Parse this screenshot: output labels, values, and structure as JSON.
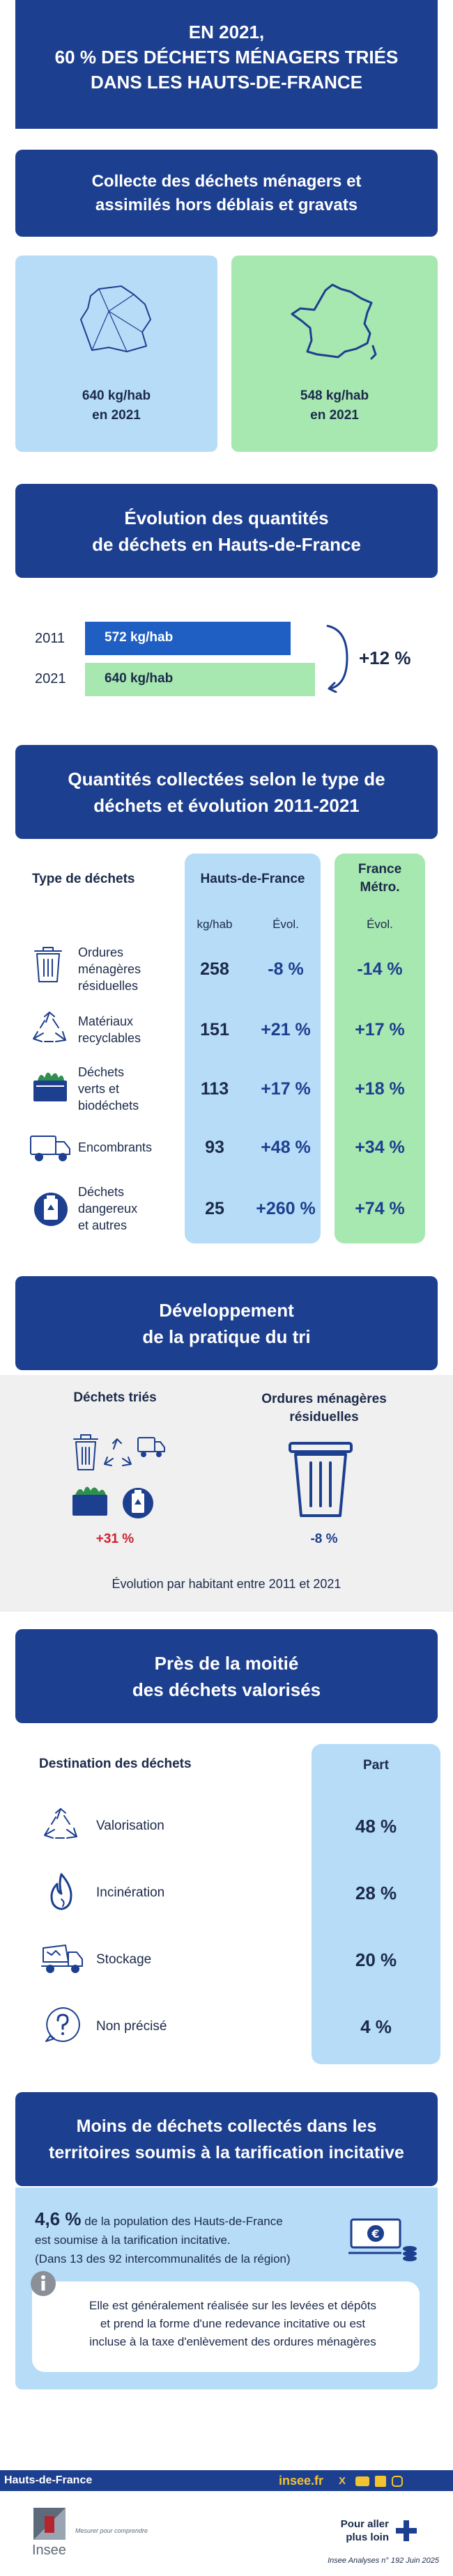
{
  "header": {
    "line1": "EN 2021,",
    "line2": "60 % DES DÉCHETS MÉNAGERS TRIÉS",
    "line3": "DANS LES HAUTS-DE-FRANCE"
  },
  "collecte": {
    "title_line1": "Collecte des déchets ménagers et",
    "title_line2": "assimilés hors déblais et gravats",
    "left": {
      "value": "640 kg/hab",
      "year": "en 2021",
      "color": "#b7dcf8"
    },
    "right": {
      "value": "548 kg/hab",
      "year": "en 2021",
      "color": "#a7e7b0"
    }
  },
  "evolution": {
    "title_line1": "Évolution des quantités",
    "title_line2": "de déchets en Hauts-de-France",
    "bars": [
      {
        "year": "2011",
        "label": "572 kg/hab",
        "value": 572,
        "color": "#1f5fc4"
      },
      {
        "year": "2021",
        "label": "640 kg/hab",
        "value": 640,
        "color": "#a7e7b0"
      }
    ],
    "change": "+12 %"
  },
  "types": {
    "title_line1": "Quantités collectées selon le type de",
    "title_line2": "déchets et évolution 2011-2021",
    "col_type": "Type de déchets",
    "col_hdf": "Hauts-de-France",
    "col_fr_line1": "France",
    "col_fr_line2": "Métro.",
    "sub_kg": "kg/hab",
    "sub_evol": "Évol.",
    "sub_evol_fr": "Évol.",
    "rows": [
      {
        "icon": "trash-bin-icon",
        "label": [
          "Ordures",
          "ménagères",
          "résiduelles"
        ],
        "kg": "258",
        "evol": "-8 %",
        "fr": "-14 %"
      },
      {
        "icon": "recycling-icon",
        "label": [
          "Matériaux",
          "recyclables"
        ],
        "kg": "151",
        "evol": "+21 %",
        "fr": "+17 %"
      },
      {
        "icon": "green-waste-icon",
        "label": [
          "Déchets",
          "verts et",
          "biodéchets"
        ],
        "kg": "113",
        "evol": "+17 %",
        "fr": "+18 %"
      },
      {
        "icon": "truck-icon",
        "label": [
          "Encombrants"
        ],
        "kg": "93",
        "evol": "+48 %",
        "fr": "+34 %"
      },
      {
        "icon": "hazard-can-icon",
        "label": [
          "Déchets",
          "dangereux",
          "et autres"
        ],
        "kg": "25",
        "evol": "+260 %",
        "fr": "+74 %"
      }
    ]
  },
  "tri": {
    "title_line1": "Développement",
    "title_line2": "de la pratique du tri",
    "left_title": "Déchets triés",
    "left_value": "+31 %",
    "right_title_line1": "Ordures ménagères",
    "right_title_line2": "résiduelles",
    "right_value": "-8 %",
    "note": "Évolution par habitant entre 2011 et 2021"
  },
  "valorises": {
    "title_line1": "Près de la moitié",
    "title_line2": "des déchets valorisés",
    "col_dest": "Destination des déchets",
    "col_part": "Part",
    "rows": [
      {
        "icon": "recycling-icon",
        "label": "Valorisation",
        "part": "48 %"
      },
      {
        "icon": "flame-icon",
        "label": "Incinération",
        "part": "28 %"
      },
      {
        "icon": "dump-truck-icon",
        "label": "Stockage",
        "part": "20 %"
      },
      {
        "icon": "question-icon",
        "label": "Non précisé",
        "part": "4 %"
      }
    ]
  },
  "tarification": {
    "title_line1": "Moins de déchets collectés dans les",
    "title_line2": "territoires soumis à la tarification incitative",
    "pct": "4,6 %",
    "text1": "de la population des Hauts-de-France",
    "text2": "est soumise à la tarification incitative.",
    "text3": "(Dans 13 des 92 intercommunalités de la région)",
    "info_line1": "Elle est généralement réalisée sur les levées et dépôts",
    "info_line2": "et prend la forme d'une redevance incitative ou est",
    "info_line3": "incluse à la taxe d'enlèvement des ordures ménagères"
  },
  "footer": {
    "region": "Hauts-de-France",
    "site": "insee.fr",
    "logo_text": "Insee",
    "logo_tagline": "Mesurer pour comprendre",
    "more_line1": "Pour aller",
    "more_line2": "plus loin",
    "ref": "Insee Analyses n° 192 Juin 2025"
  }
}
